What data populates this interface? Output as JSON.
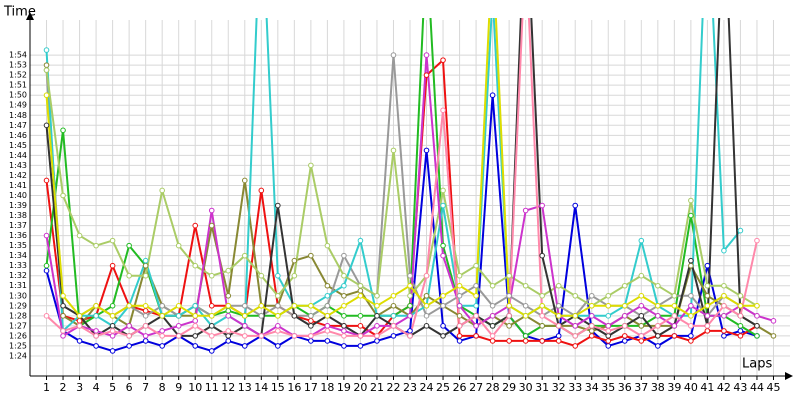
{
  "chart_data": {
    "type": "line",
    "y_label": "Time",
    "x_label": "Laps",
    "grid": true,
    "x": [
      1,
      2,
      3,
      4,
      5,
      6,
      7,
      8,
      9,
      10,
      11,
      12,
      13,
      14,
      15,
      16,
      17,
      18,
      19,
      20,
      21,
      22,
      23,
      24,
      25,
      26,
      27,
      28,
      29,
      30,
      31,
      32,
      33,
      34,
      35,
      36,
      37,
      38,
      39,
      40,
      41,
      42,
      43,
      44,
      45
    ],
    "xlim": [
      0,
      46
    ],
    "xticks": [
      1,
      2,
      3,
      4,
      5,
      6,
      7,
      8,
      9,
      10,
      11,
      12,
      13,
      14,
      15,
      16,
      17,
      18,
      19,
      20,
      21,
      22,
      23,
      24,
      25,
      26,
      27,
      28,
      29,
      30,
      31,
      32,
      33,
      34,
      35,
      36,
      37,
      38,
      39,
      40,
      41,
      42,
      43,
      44,
      45
    ],
    "ylim": [
      82,
      117.5
    ],
    "yticks": [
      {
        "value": 84,
        "label": "1:24"
      },
      {
        "value": 85,
        "label": "1:25"
      },
      {
        "value": 86,
        "label": "1:26"
      },
      {
        "value": 87,
        "label": "1:27"
      },
      {
        "value": 88,
        "label": "1:28"
      },
      {
        "value": 89,
        "label": "1:29"
      },
      {
        "value": 90,
        "label": "1:30"
      },
      {
        "value": 91,
        "label": "1:31"
      },
      {
        "value": 92,
        "label": "1:32"
      },
      {
        "value": 93,
        "label": "1:33"
      },
      {
        "value": 94,
        "label": "1:34"
      },
      {
        "value": 95,
        "label": "1:35"
      },
      {
        "value": 96,
        "label": "1:36"
      },
      {
        "value": 97,
        "label": "1:37"
      },
      {
        "value": 98,
        "label": "1:38"
      },
      {
        "value": 99,
        "label": "1:39"
      },
      {
        "value": 100,
        "label": "1:40"
      },
      {
        "value": 101,
        "label": "1:41"
      },
      {
        "value": 102,
        "label": "1:42"
      },
      {
        "value": 103,
        "label": "1:43"
      },
      {
        "value": 104,
        "label": "1:44"
      },
      {
        "value": 105,
        "label": "1:45"
      },
      {
        "value": 106,
        "label": "1:46"
      },
      {
        "value": 107,
        "label": "1:47"
      },
      {
        "value": 108,
        "label": "1:48"
      },
      {
        "value": 109,
        "label": "1:49"
      },
      {
        "value": 110,
        "label": "1:50"
      },
      {
        "value": 111,
        "label": "1:51"
      },
      {
        "value": 112,
        "label": "1:52"
      },
      {
        "value": 113,
        "label": "1:53"
      },
      {
        "value": 114,
        "label": "1:54"
      }
    ],
    "series": [
      {
        "color": "#0000dd",
        "values": [
          92.5,
          86.5,
          85.5,
          85,
          84.5,
          85,
          85.5,
          85,
          86,
          85,
          84.5,
          85.5,
          85,
          86,
          85,
          86,
          85.5,
          85.5,
          85,
          85,
          85.5,
          86,
          86.5,
          104.5,
          87,
          85.5,
          86,
          110,
          88,
          86,
          85.5,
          86,
          99,
          86.5,
          85,
          85.5,
          86,
          85,
          86,
          86,
          93,
          86,
          86.5,
          86,
          null
        ]
      },
      {
        "color": "#ee1111",
        "values": [
          101.5,
          88,
          87.5,
          88,
          93,
          89,
          88.5,
          88,
          88,
          97,
          89,
          89,
          88,
          100.5,
          89,
          88,
          87.5,
          87,
          87,
          87,
          86,
          88,
          89,
          112,
          113.5,
          86,
          86,
          85.5,
          85.5,
          85.5,
          85.5,
          85.5,
          85,
          86,
          85.5,
          86,
          85.5,
          86,
          86,
          85.5,
          86.5,
          86.5,
          86,
          87,
          null
        ]
      },
      {
        "color": "#22bb22",
        "values": [
          93,
          106.5,
          87,
          88,
          89,
          95,
          93,
          88,
          88,
          89,
          88,
          88.5,
          88,
          88,
          88,
          89,
          88,
          89,
          88,
          88,
          88,
          88,
          89,
          125,
          95,
          89,
          88,
          87,
          88,
          86,
          87,
          87,
          86,
          87,
          87,
          87,
          87,
          88,
          88,
          98,
          88,
          88,
          87,
          86,
          null
        ]
      },
      {
        "color": "#888833",
        "values": [
          113,
          88,
          87,
          89,
          88,
          87,
          93,
          89,
          88,
          88,
          97,
          90,
          101.5,
          89,
          89,
          93.5,
          94,
          91,
          90,
          90.5,
          88,
          89,
          88,
          90,
          89,
          88,
          87,
          88,
          87,
          88,
          87,
          87,
          87,
          86.5,
          87,
          88,
          87,
          87,
          87,
          93,
          90,
          89,
          88,
          87,
          86
        ]
      },
      {
        "color": "#999999",
        "values": [
          112.5,
          89,
          88,
          89,
          88,
          89,
          88,
          89,
          88,
          89,
          88,
          89,
          89,
          88,
          89,
          88,
          88,
          89,
          94,
          91,
          90,
          114,
          92,
          88,
          89,
          90,
          91,
          89,
          90,
          89,
          88,
          89,
          88,
          90,
          89,
          89,
          88,
          89,
          90,
          90,
          88,
          90,
          89,
          88,
          null
        ]
      },
      {
        "color": "#33cccc",
        "values": [
          114.5,
          86.5,
          88,
          88,
          87,
          89,
          93.5,
          88,
          88,
          89,
          87,
          88,
          87,
          130,
          92,
          89,
          89,
          90,
          91,
          95.5,
          88,
          88,
          88,
          89,
          99,
          89,
          89,
          120,
          89,
          88,
          89,
          88,
          88,
          88,
          88,
          89,
          95.5,
          89,
          88,
          88,
          130,
          94.5,
          96.5,
          null,
          null
        ]
      },
      {
        "color": "#aacc66",
        "values": [
          112.5,
          100,
          96,
          95,
          95.5,
          92,
          92,
          100.5,
          95,
          93,
          92,
          92.5,
          94,
          92,
          90,
          92,
          103,
          95,
          92,
          91,
          90,
          104.5,
          90,
          92,
          100.5,
          92,
          93,
          91,
          92,
          91,
          90,
          91,
          90,
          89,
          90,
          91,
          92,
          91,
          90,
          99.5,
          91,
          91,
          90,
          89,
          null
        ]
      },
      {
        "color": "#333333",
        "values": [
          107,
          89,
          88,
          86,
          87,
          86,
          87,
          88,
          86,
          86,
          87,
          86,
          87,
          86,
          99,
          88,
          87,
          88,
          87,
          86,
          88,
          87,
          86,
          87,
          86,
          87,
          88,
          87,
          88,
          130,
          94,
          87,
          88,
          87,
          86,
          87,
          88,
          86,
          87,
          93.5,
          87,
          130,
          88,
          87,
          null
        ]
      },
      {
        "color": "#cc33cc",
        "values": [
          96,
          86,
          87,
          86.5,
          86,
          87,
          86,
          86.5,
          87,
          87.5,
          98.5,
          88,
          87,
          86,
          87,
          86,
          86,
          87,
          86.5,
          86,
          87,
          87,
          88,
          114,
          94,
          89,
          87,
          88,
          89,
          98.5,
          99,
          88,
          87,
          88,
          87,
          88,
          89,
          88,
          87,
          89,
          88,
          88,
          89,
          88,
          87.5
        ]
      },
      {
        "color": "#ff88aa",
        "values": [
          88,
          86.5,
          87,
          86,
          86.5,
          86,
          87,
          86,
          86,
          87,
          86,
          86.5,
          86,
          86,
          86.5,
          86,
          86,
          86.5,
          86,
          86,
          86,
          87,
          86,
          92,
          108.5,
          87,
          88,
          86,
          88,
          125,
          88,
          87,
          86,
          87,
          86.5,
          87,
          86,
          87,
          88,
          87,
          87,
          89,
          88,
          95.5,
          null
        ]
      },
      {
        "color": "#dddd00",
        "values": [
          110,
          90,
          88,
          89,
          88,
          89,
          89,
          88,
          89,
          88,
          88,
          89,
          88,
          89,
          88,
          89,
          89,
          88,
          89,
          90,
          89,
          90,
          91,
          89,
          90,
          91,
          90,
          125,
          89,
          88,
          89,
          88,
          88,
          89,
          89,
          89,
          90,
          89,
          89,
          88,
          89,
          90,
          89,
          89,
          null
        ]
      }
    ]
  }
}
